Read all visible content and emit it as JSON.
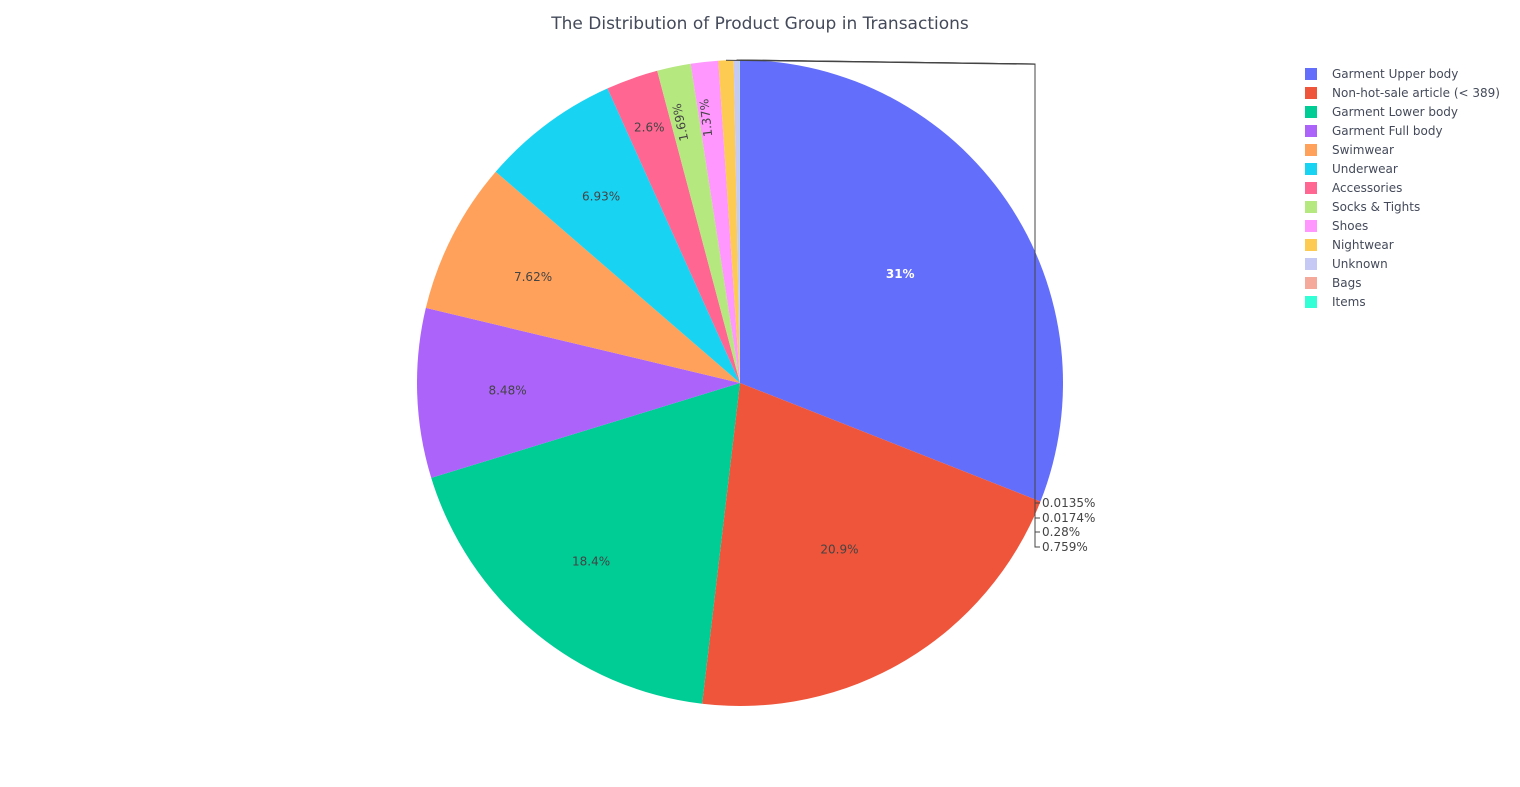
{
  "chart_data": {
    "type": "pie",
    "title": "The Distribution of Product Group in Transactions",
    "legend_position": "top-right",
    "labels": [
      "Garment Upper body",
      "Non-hot-sale article (< 389)",
      "Garment Lower body",
      "Garment Full body",
      "Swimwear",
      "Underwear",
      "Accessories",
      "Socks & Tights",
      "Shoes",
      "Nightwear",
      "Unknown",
      "Bags",
      "Items"
    ],
    "values": [
      31,
      20.9,
      18.4,
      8.48,
      7.62,
      6.93,
      2.6,
      1.69,
      1.37,
      0.759,
      0.28,
      0.0174,
      0.0135
    ],
    "value_labels": [
      "31%",
      "20.9%",
      "18.4%",
      "8.48%",
      "7.62%",
      "6.93%",
      "2.6%",
      "1.69%",
      "1.37%",
      "0.759%",
      "0.28%",
      "0.0174%",
      "0.0135%"
    ],
    "colors": [
      "#636efa",
      "#ef553b",
      "#00cc96",
      "#ab63fa",
      "#ffa15a",
      "#19d3f3",
      "#ff6692",
      "#b6e880",
      "#ff97ff",
      "#fecb52",
      "#c5c9f3",
      "#f4a99a",
      "#33ffd6"
    ]
  }
}
